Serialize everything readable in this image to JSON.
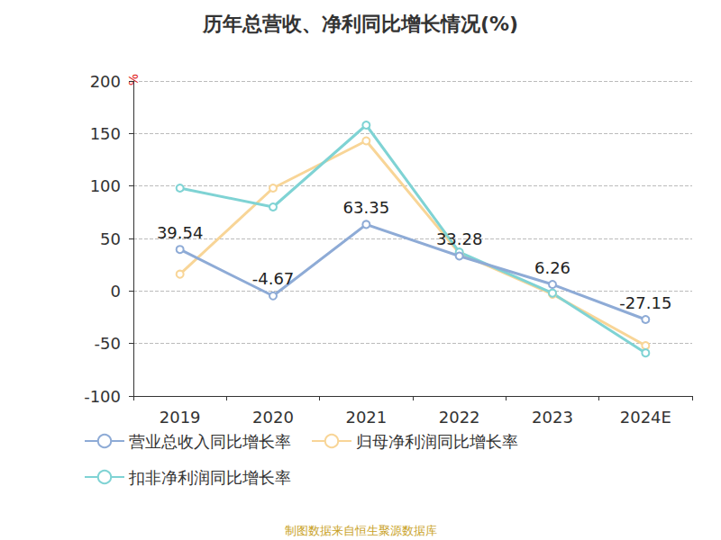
{
  "chart_data": {
    "type": "line",
    "title": "历年总营收、净利同比增长情况(%)",
    "source": "制图数据来自恒生聚源数据库",
    "y_label": "%",
    "categories": [
      "2019",
      "2020",
      "2021",
      "2022",
      "2023",
      "2024E"
    ],
    "series": [
      {
        "name": "营业总收入同比增长率",
        "color": "#8eabd6",
        "values": [
          39.54,
          -4.67,
          63.35,
          33.28,
          6.26,
          -27.15
        ],
        "data_labels": true
      },
      {
        "name": "归母净利润同比增长率",
        "color": "#f8d597",
        "values": [
          16,
          98,
          143,
          36,
          -3,
          -52
        ]
      },
      {
        "name": "扣非净利润同比增长率",
        "color": "#7fd3d4",
        "values": [
          98,
          80,
          158,
          37,
          -2,
          -59
        ]
      }
    ],
    "ylim": [
      -100,
      200
    ],
    "yticks": [
      -100,
      -50,
      0,
      50,
      100,
      150,
      200
    ],
    "grid": true,
    "legend": "bottom",
    "marker": "circle"
  }
}
